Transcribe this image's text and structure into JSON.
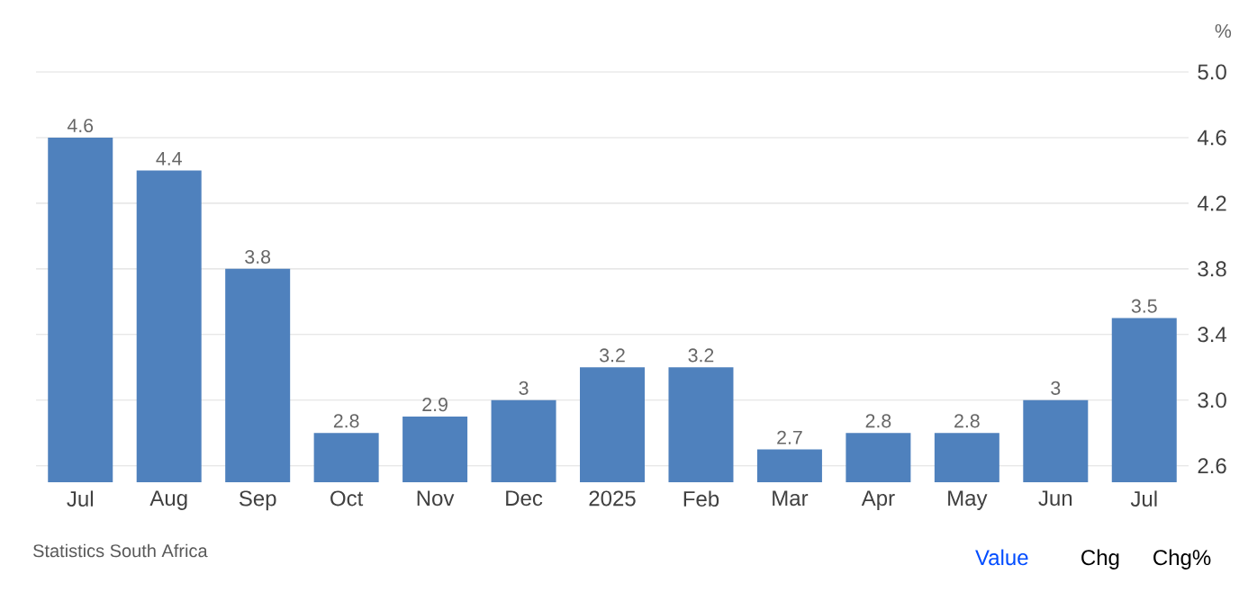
{
  "chart_data": {
    "type": "bar",
    "ylabel": "%",
    "categories": [
      "Jul",
      "Aug",
      "Sep",
      "Oct",
      "Nov",
      "Dec",
      "2025",
      "Feb",
      "Mar",
      "Apr",
      "May",
      "Jun",
      "Jul"
    ],
    "values": [
      4.6,
      4.4,
      3.8,
      2.8,
      2.9,
      3,
      3.2,
      3.2,
      2.7,
      2.8,
      2.8,
      3,
      3.5
    ],
    "color": "#4f81bd",
    "ylim": [
      2.5,
      5
    ],
    "yticks": [
      2.6,
      {
        "value": 3,
        "label": "3.0"
      },
      3.4,
      3.8,
      4.2,
      4.6,
      {
        "value": 5,
        "label": "5.0"
      }
    ],
    "grid": "y",
    "data_labels": true,
    "annotations": [
      "Statistics South Africa",
      "Value",
      "Chg",
      "Chg%"
    ]
  }
}
